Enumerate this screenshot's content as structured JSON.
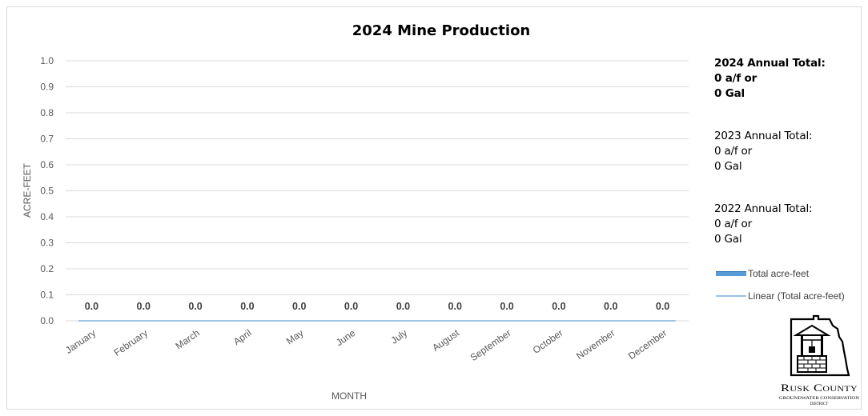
{
  "chart_data": {
    "type": "bar",
    "title": "2024 Mine Production",
    "xlabel": "MONTH",
    "ylabel": "ACRE-FEET",
    "categories": [
      "January",
      "February",
      "March",
      "April",
      "May",
      "June",
      "July",
      "August",
      "September",
      "October",
      "November",
      "December"
    ],
    "series": [
      {
        "name": "Total acre-feet",
        "values": [
          0,
          0,
          0,
          0,
          0,
          0,
          0,
          0,
          0,
          0,
          0,
          0
        ],
        "color": "#5b9bd5"
      }
    ],
    "trendline": {
      "name": "Linear (Total acre-feet)",
      "color": "#9dc3e6"
    },
    "data_labels": [
      "0.0",
      "0.0",
      "0.0",
      "0.0",
      "0.0",
      "0.0",
      "0.0",
      "0.0",
      "0.0",
      "0.0",
      "0.0",
      "0.0"
    ],
    "ylim": [
      0,
      1.0
    ],
    "yticks": [
      "0.0",
      "0.1",
      "0.2",
      "0.3",
      "0.4",
      "0.5",
      "0.6",
      "0.7",
      "0.8",
      "0.9",
      "1.0"
    ],
    "grid": true,
    "legend_position": "right",
    "gridline_color": "#d9d9d9"
  },
  "annotations": [
    {
      "lines": [
        "2024 Annual Total:",
        "0 a/f or",
        "0 Gal"
      ],
      "bold": true
    },
    {
      "lines": [
        "2023 Annual Total:",
        "0 a/f or",
        "0 Gal"
      ],
      "bold": false
    },
    {
      "lines": [
        "2022 Annual Total:",
        "0 a/f or",
        "0 Gal"
      ],
      "bold": false
    }
  ],
  "logo": {
    "name": "rusk-county-logo",
    "line1": "Rusk County",
    "line2": "GROUNDWATER CONSERVATION",
    "line3": "DISTRICT"
  }
}
